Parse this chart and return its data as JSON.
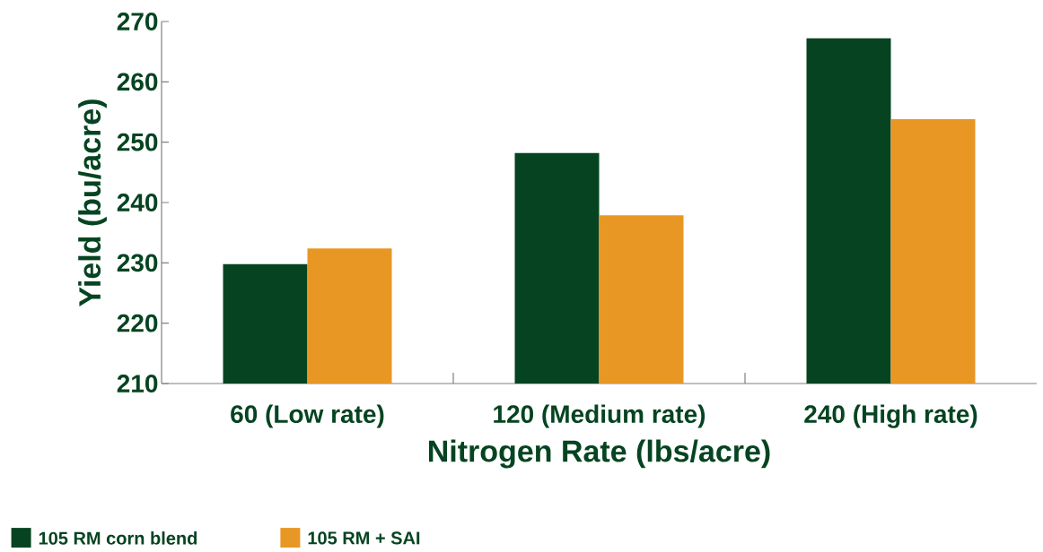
{
  "chart_data": {
    "type": "bar",
    "xlabel": "Nitrogen Rate (lbs/acre)",
    "ylabel": "Yield (bu/acre)",
    "categories": [
      "60 (Low rate)",
      "120 (Medium rate)",
      "240 (High rate)"
    ],
    "series": [
      {
        "name": "105 RM corn blend",
        "color": "#064421",
        "values": [
          229.8,
          248.2,
          267.2
        ]
      },
      {
        "name": "105 RM + SAI",
        "color": "#e89724",
        "values": [
          232.4,
          237.9,
          253.8
        ]
      }
    ],
    "ylim": [
      210,
      270
    ],
    "yticks": [
      210,
      220,
      230,
      240,
      250,
      260,
      270
    ],
    "grid": false,
    "legend": "bottom"
  }
}
